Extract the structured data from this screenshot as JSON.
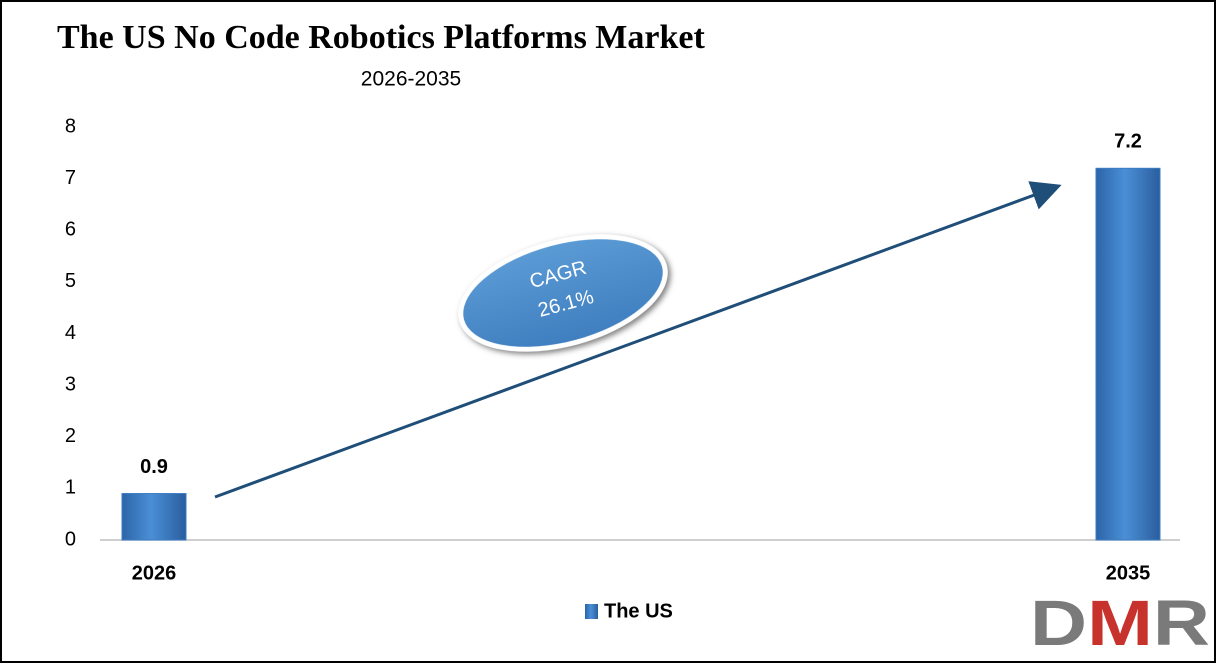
{
  "chart_data": {
    "type": "bar",
    "title": "The US No Code Robotics Platforms Market",
    "subtitle": "2026-2035",
    "categories": [
      "2026",
      "2035"
    ],
    "series": [
      {
        "name": "The US",
        "color": "#3a7cc4",
        "values": [
          0.9,
          7.2
        ]
      }
    ],
    "ylim": [
      0,
      8
    ],
    "yticks": [
      0,
      1,
      2,
      3,
      4,
      5,
      6,
      7,
      8
    ],
    "grid": false,
    "annotation": [
      "CAGR",
      "26.1%"
    ],
    "logo": "DMR"
  }
}
